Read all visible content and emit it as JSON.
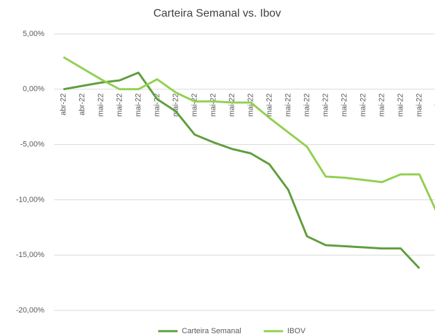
{
  "chart_data": {
    "type": "line",
    "title": "Carteira Semanal vs. Ibov",
    "categories": [
      "abr-22",
      "abr-22",
      "mai-22",
      "mai-22",
      "mai-22",
      "mai-22",
      "mai-22",
      "mai-22",
      "mai-22",
      "mai-22",
      "mai-22",
      "mai-22",
      "mai-22",
      "mai-22",
      "mai-22",
      "mai-22",
      "mai-22",
      "mai-22",
      "mai-22",
      "mai-22",
      "mai-22"
    ],
    "series": [
      {
        "name": "Carteira Semanal",
        "color": "#5f9e3c",
        "values": [
          0,
          0.3,
          0.6,
          0.8,
          1.5,
          -0.9,
          -2.0,
          -4.1,
          -4.8,
          -5.4,
          -5.8,
          -6.8,
          -9.1,
          -13.3,
          -14.1,
          -14.2,
          -14.3,
          -14.4,
          -14.4,
          -16.2,
          null
        ]
      },
      {
        "name": "IBOV",
        "color": "#92d050",
        "values": [
          2.9,
          1.9,
          0.9,
          0,
          0,
          0.9,
          -0.3,
          -1.1,
          -1.1,
          -1.2,
          -1.2,
          -2.6,
          -3.9,
          -5.2,
          -7.9,
          -8.0,
          -8.2,
          -8.4,
          -7.7,
          -7.7,
          -11.4
        ]
      }
    ],
    "ylim": [
      -20,
      5
    ],
    "yticks": [
      {
        "value": -20,
        "label": "-20,00%"
      },
      {
        "value": -15,
        "label": "-15,00%"
      },
      {
        "value": -10,
        "label": "-10,00%"
      },
      {
        "value": -5,
        "label": "-5,00%"
      },
      {
        "value": 0,
        "label": "0,00%"
      },
      {
        "value": 5,
        "label": "5,00%"
      }
    ],
    "grid": true,
    "legend": "bottom"
  }
}
